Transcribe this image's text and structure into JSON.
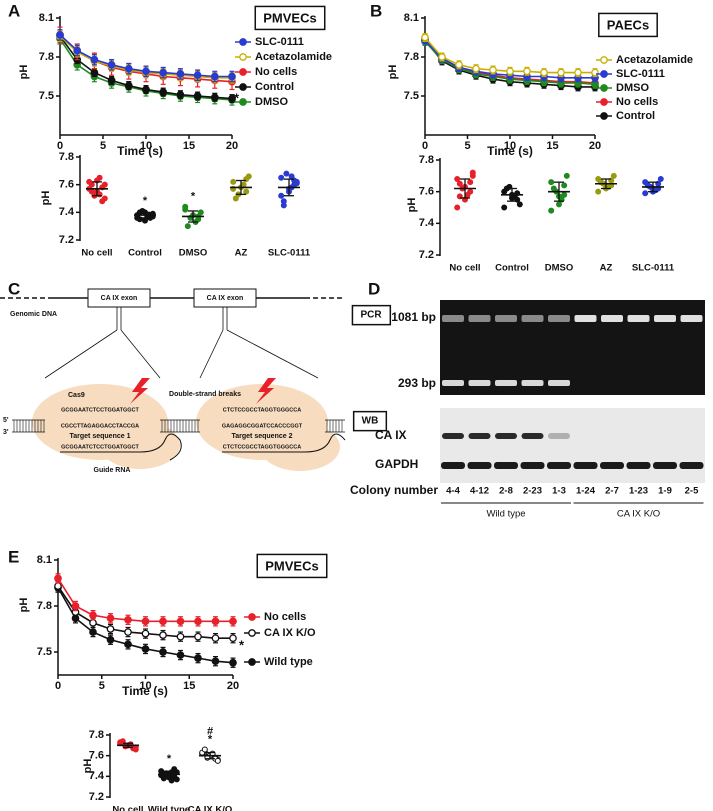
{
  "chart_data": [
    {
      "type": "line",
      "panel": "A",
      "title": "PMVECs",
      "x_label": "Time (s)",
      "y_label": "pH",
      "x": [
        0,
        2,
        4,
        6,
        8,
        10,
        12,
        14,
        16,
        18,
        20
      ],
      "xlim": [
        0,
        20
      ],
      "xticks": [
        0,
        5,
        10,
        15,
        20
      ],
      "ylim": [
        7.2,
        8.1
      ],
      "yticks": [
        7.5,
        7.8,
        8.1
      ],
      "series": [
        {
          "name": "SLC-0111",
          "color": "#2a3bd1",
          "values": [
            7.97,
            7.85,
            7.78,
            7.74,
            7.71,
            7.69,
            7.68,
            7.67,
            7.66,
            7.65,
            7.65
          ],
          "errors": [
            0.04,
            0.04,
            0.04,
            0.04,
            0.04,
            0.04,
            0.04,
            0.04,
            0.04,
            0.04,
            0.04
          ]
        },
        {
          "name": "Acetazolamide",
          "color": "#c9b000",
          "open": true,
          "values": [
            7.96,
            7.84,
            7.77,
            7.73,
            7.7,
            7.68,
            7.67,
            7.66,
            7.65,
            7.64,
            7.64
          ],
          "errors": [
            0.04,
            0.04,
            0.04,
            0.04,
            0.04,
            0.04,
            0.04,
            0.04,
            0.04,
            0.04,
            0.04
          ]
        },
        {
          "name": "No cells",
          "color": "#e8202a",
          "values": [
            7.97,
            7.84,
            7.77,
            7.72,
            7.69,
            7.67,
            7.65,
            7.64,
            7.63,
            7.62,
            7.61
          ],
          "errors": [
            0.06,
            0.06,
            0.06,
            0.06,
            0.06,
            0.06,
            0.06,
            0.06,
            0.06,
            0.06,
            0.06
          ]
        },
        {
          "name": "Control",
          "color": "#111111",
          "values": [
            7.96,
            7.78,
            7.68,
            7.62,
            7.58,
            7.55,
            7.53,
            7.51,
            7.5,
            7.49,
            7.48
          ],
          "errors": [
            0.03,
            0.03,
            0.03,
            0.03,
            0.03,
            0.03,
            0.03,
            0.03,
            0.03,
            0.03,
            0.03
          ]
        },
        {
          "name": "DMSO",
          "color": "#1f8a1f",
          "values": [
            7.94,
            7.74,
            7.65,
            7.6,
            7.57,
            7.54,
            7.52,
            7.5,
            7.49,
            7.48,
            7.47
          ],
          "errors": [
            0.04,
            0.04,
            0.04,
            0.04,
            0.04,
            0.04,
            0.04,
            0.04,
            0.04,
            0.04,
            0.04
          ]
        }
      ],
      "annotations": [
        "*"
      ]
    },
    {
      "type": "dotplot",
      "y_label": "pH",
      "ylim": [
        7.2,
        7.8
      ],
      "yticks": [
        7.2,
        7.4,
        7.6,
        7.8
      ],
      "groups": [
        {
          "name": "No cell",
          "color": "#e8202a",
          "points": [
            7.62,
            7.58,
            7.55,
            7.6,
            7.5,
            7.65,
            7.52,
            7.57,
            7.48,
            7.63,
            7.55,
            7.6,
            7.53
          ],
          "mean": 7.57,
          "sd": 0.05
        },
        {
          "name": "Control",
          "color": "#111111",
          "points": [
            7.38,
            7.36,
            7.4,
            7.35,
            7.39,
            7.37,
            7.41,
            7.36,
            7.38,
            7.34,
            7.4,
            7.37
          ],
          "mean": 7.38,
          "sd": 0.02
        },
        {
          "name": "DMSO",
          "color": "#1f8a1f",
          "points": [
            7.42,
            7.35,
            7.38,
            7.3,
            7.4,
            7.33,
            7.36,
            7.44,
            7.37
          ],
          "mean": 7.37,
          "sd": 0.04
        },
        {
          "name": "AZ",
          "color": "#9a9a10",
          "points": [
            7.62,
            7.55,
            7.58,
            7.5,
            7.66,
            7.6,
            7.53,
            7.57,
            7.64
          ],
          "mean": 7.58,
          "sd": 0.05
        },
        {
          "name": "SLC-0111",
          "color": "#2a3bd1",
          "points": [
            7.65,
            7.6,
            7.55,
            7.48,
            7.62,
            7.58,
            7.68,
            7.52,
            7.63,
            7.57,
            7.45,
            7.61,
            7.66
          ],
          "mean": 7.58,
          "sd": 0.06
        }
      ],
      "annotations": [
        {
          "category": "Control",
          "text": "*"
        },
        {
          "category": "DMSO",
          "text": "*"
        }
      ]
    },
    {
      "type": "line",
      "panel": "B",
      "title": "PAECs",
      "x_label": "Time (s)",
      "y_label": "pH",
      "x": [
        0,
        2,
        4,
        6,
        8,
        10,
        12,
        14,
        16,
        18,
        20
      ],
      "xlim": [
        0,
        20
      ],
      "xticks": [
        0,
        5,
        10,
        15,
        20
      ],
      "ylim": [
        7.2,
        8.1
      ],
      "yticks": [
        7.5,
        7.8,
        8.1
      ],
      "series": [
        {
          "name": "Acetazolamide",
          "color": "#c9b000",
          "open": true,
          "values": [
            7.95,
            7.8,
            7.74,
            7.71,
            7.7,
            7.69,
            7.69,
            7.68,
            7.68,
            7.68,
            7.68
          ],
          "errors": [
            0.03,
            0.03,
            0.03,
            0.03,
            0.03,
            0.03,
            0.03,
            0.03,
            0.03,
            0.03,
            0.03
          ]
        },
        {
          "name": "SLC-0111",
          "color": "#2a3bd1",
          "values": [
            7.93,
            7.79,
            7.72,
            7.69,
            7.67,
            7.66,
            7.65,
            7.65,
            7.64,
            7.64,
            7.64
          ],
          "errors": [
            0.03,
            0.03,
            0.03,
            0.03,
            0.03,
            0.03,
            0.03,
            0.03,
            0.03,
            0.03,
            0.03
          ]
        },
        {
          "name": "DMSO",
          "color": "#1f8a1f",
          "values": [
            7.92,
            7.78,
            7.71,
            7.67,
            7.65,
            7.63,
            7.62,
            7.61,
            7.6,
            7.6,
            7.59
          ],
          "errors": [
            0.03,
            0.03,
            0.03,
            0.03,
            0.03,
            0.03,
            0.03,
            0.03,
            0.03,
            0.03,
            0.03
          ]
        },
        {
          "name": "No cells",
          "color": "#e8202a",
          "values": [
            7.94,
            7.79,
            7.72,
            7.68,
            7.66,
            7.64,
            7.63,
            7.62,
            7.61,
            7.61,
            7.6
          ],
          "errors": [
            0.03,
            0.03,
            0.03,
            0.03,
            0.03,
            0.03,
            0.03,
            0.03,
            0.03,
            0.03,
            0.03
          ]
        },
        {
          "name": "Control",
          "color": "#111111",
          "values": [
            7.93,
            7.77,
            7.7,
            7.66,
            7.63,
            7.61,
            7.6,
            7.59,
            7.58,
            7.57,
            7.57
          ],
          "errors": [
            0.03,
            0.03,
            0.03,
            0.03,
            0.03,
            0.03,
            0.03,
            0.03,
            0.03,
            0.03,
            0.03
          ]
        }
      ]
    },
    {
      "type": "dotplot",
      "y_label": "pH",
      "ylim": [
        7.2,
        7.8
      ],
      "yticks": [
        7.2,
        7.4,
        7.6,
        7.8
      ],
      "groups": [
        {
          "name": "No cell",
          "color": "#e8202a",
          "points": [
            7.68,
            7.6,
            7.55,
            7.65,
            7.7,
            7.58,
            7.62,
            7.5,
            7.66,
            7.63,
            7.57,
            7.72
          ],
          "mean": 7.62,
          "sd": 0.06
        },
        {
          "name": "Control",
          "color": "#111111",
          "points": [
            7.6,
            7.55,
            7.58,
            7.62,
            7.52,
            7.57,
            7.63,
            7.5,
            7.59,
            7.56
          ],
          "mean": 7.58,
          "sd": 0.04
        },
        {
          "name": "DMSO",
          "color": "#1f8a1f",
          "points": [
            7.66,
            7.58,
            7.52,
            7.62,
            7.7,
            7.55,
            7.6,
            7.48,
            7.64,
            7.57
          ],
          "mean": 7.6,
          "sd": 0.06
        },
        {
          "name": "AZ",
          "color": "#9a9a10",
          "points": [
            7.68,
            7.64,
            7.62,
            7.66,
            7.7,
            7.63,
            7.65,
            7.6,
            7.67,
            7.64,
            7.66
          ],
          "mean": 7.65,
          "sd": 0.03
        },
        {
          "name": "SLC-0111",
          "color": "#2a3bd1",
          "points": [
            7.66,
            7.62,
            7.6,
            7.64,
            7.68,
            7.61,
            7.63,
            7.59,
            7.65,
            7.62,
            7.64
          ],
          "mean": 7.63,
          "sd": 0.03
        }
      ]
    },
    {
      "type": "line",
      "panel": "E",
      "title": "PMVECs",
      "x_label": "Time (s)",
      "y_label": "pH",
      "x": [
        0,
        2,
        4,
        6,
        8,
        10,
        12,
        14,
        16,
        18,
        20
      ],
      "xlim": [
        0,
        20
      ],
      "xticks": [
        0,
        5,
        10,
        15,
        20
      ],
      "ylim": [
        7.35,
        8.1
      ],
      "yticks": [
        7.5,
        7.8,
        8.1
      ],
      "series": [
        {
          "name": "No cells",
          "color": "#e8202a",
          "values": [
            7.98,
            7.8,
            7.74,
            7.72,
            7.71,
            7.7,
            7.7,
            7.7,
            7.7,
            7.7,
            7.7
          ],
          "errors": [
            0.03,
            0.03,
            0.03,
            0.03,
            0.03,
            0.03,
            0.03,
            0.03,
            0.03,
            0.03,
            0.03
          ]
        },
        {
          "name": "CA IX K/O",
          "color": "#111111",
          "open": true,
          "values": [
            7.93,
            7.76,
            7.69,
            7.65,
            7.63,
            7.62,
            7.61,
            7.6,
            7.6,
            7.59,
            7.59
          ],
          "errors": [
            0.03,
            0.03,
            0.03,
            0.03,
            0.03,
            0.03,
            0.03,
            0.03,
            0.03,
            0.03,
            0.03
          ]
        },
        {
          "name": "Wild type",
          "color": "#111111",
          "values": [
            7.92,
            7.72,
            7.63,
            7.58,
            7.55,
            7.52,
            7.5,
            7.48,
            7.46,
            7.44,
            7.43
          ],
          "errors": [
            0.03,
            0.03,
            0.03,
            0.03,
            0.03,
            0.03,
            0.03,
            0.03,
            0.03,
            0.03,
            0.03
          ]
        }
      ],
      "annotations": [
        "*"
      ]
    },
    {
      "type": "dotplot",
      "y_label": "pH",
      "ylim": [
        7.2,
        7.8
      ],
      "yticks": [
        7.2,
        7.4,
        7.6,
        7.8
      ],
      "groups": [
        {
          "name": "No cell",
          "color": "#e8202a",
          "points": [
            7.72,
            7.68,
            7.7,
            7.74,
            7.66,
            7.71,
            7.69,
            7.73,
            7.67,
            7.7,
            7.72,
            7.68
          ],
          "mean": 7.7,
          "sd": 0.02
        },
        {
          "name": "Wild type",
          "color": "#111111",
          "points": [
            7.45,
            7.4,
            7.42,
            7.38,
            7.44,
            7.36,
            7.43,
            7.41,
            7.47,
            7.39,
            7.42,
            7.37,
            7.44,
            7.4
          ],
          "mean": 7.42,
          "sd": 0.03
        },
        {
          "name": "CA IX K/O",
          "color": "#111111",
          "open": true,
          "points": [
            7.62,
            7.58,
            7.6,
            7.64,
            7.56,
            7.61,
            7.59,
            7.63,
            7.57,
            7.6,
            7.66,
            7.55,
            7.62,
            7.58
          ],
          "mean": 7.6,
          "sd": 0.03
        }
      ],
      "annotations": [
        {
          "category": "Wild type",
          "text": "*"
        },
        {
          "category": "CA IX K/O",
          "text": "*"
        },
        {
          "category": "CA IX K/O",
          "text": "#"
        }
      ]
    }
  ],
  "diagram": {
    "panel": "C",
    "exon_labels": [
      "CA IX exon",
      "CA IX exon"
    ],
    "genomic_dna": "Genomic DNA",
    "cas9": "Cas9",
    "break_label": "Double-strand breaks",
    "strand_ends": [
      "5'",
      "3'"
    ],
    "guide_rna": "Guide RNA",
    "targets": [
      {
        "label": "Target sequence 1",
        "top": "GCGGAATCTCCTGGATGGCT",
        "middle": "CGCCTTAGAGGACCTACCGA",
        "bottom": "GCGGAATCTCCTGGATGGCT"
      },
      {
        "label": "Target sequence 2",
        "top": "CTCTCCGCCTAGGTGGGCCA",
        "middle": "GAGAGGCGGATCCACCCGGT",
        "bottom": "CTCTCCGCCTAGGTGGGCCA"
      }
    ]
  },
  "gel": {
    "panel": "D",
    "pcr": {
      "label": "PCR",
      "bands": [
        "1081 bp",
        "293 bp"
      ]
    },
    "wb": {
      "label": "WB",
      "rows": [
        "CA IX",
        "GAPDH"
      ]
    },
    "lane_title": "Colony number",
    "groups": [
      {
        "name": "Wild type",
        "lanes": [
          "4-4",
          "4-12",
          "2-8",
          "2-23",
          "1-3"
        ]
      },
      {
        "name": "CA IX K/O",
        "lanes": [
          "1-24",
          "2-7",
          "1-23",
          "1-9",
          "2-5"
        ]
      }
    ]
  }
}
